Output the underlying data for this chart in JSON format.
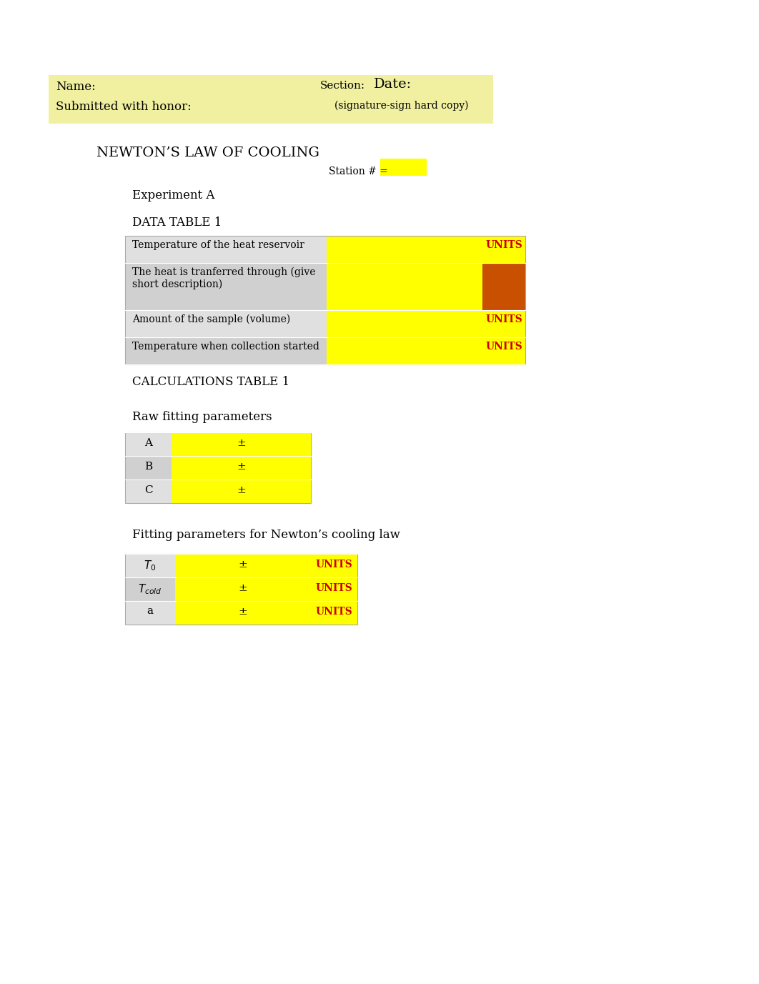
{
  "page_bg": "#ffffff",
  "header_bg": "#f0f0a0",
  "yellow": "#ffff00",
  "orange": "#c85000",
  "light_gray1": "#e0e0e0",
  "light_gray2": "#d0d0d0",
  "red": "#cc0000",
  "title": "NEWTON’S LAW OF COOLING",
  "experiment": "Experiment A",
  "data_table_title": "DATA TABLE 1",
  "calc_table_title": "CALCULATIONS TABLE 1",
  "raw_fitting": "Raw fitting parameters",
  "fitting_params": "Fitting parameters for Newton’s cooling law",
  "name_label": "Name:",
  "submitted_label": "Submitted with honor:",
  "section_label": "Section:",
  "date_label": "Date:",
  "signature_label": "(signature-sign hard copy)",
  "station_label": "Station # =",
  "data_rows": [
    "Temperature of the heat reservoir",
    "The heat is tranferred through (give\nshort description)",
    "Amount of the sample (volume)",
    "Temperature when collection started"
  ],
  "raw_rows": [
    "A",
    "B",
    "C"
  ],
  "fit_rows_display": [
    "T_0",
    "T_cold",
    "a"
  ],
  "plus_minus": "±",
  "units_text": "UNITS",
  "figw": 10.62,
  "figh": 13.77,
  "dpi": 100
}
